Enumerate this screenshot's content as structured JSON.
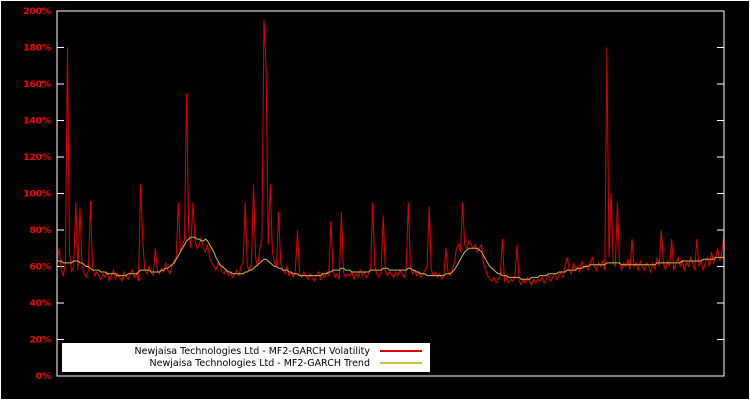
{
  "figure": {
    "background": "#000000",
    "border_color": "#ffffff",
    "tick_label_color": "#ff0000"
  },
  "legend": {
    "items": [
      {
        "label": "Newjaisa Technologies Ltd - MF2-GARCH Volatility",
        "color": "#e00000"
      },
      {
        "label": "Newjaisa Technologies Ltd - MF2-GARCH Trend",
        "color": "#ccbb44"
      }
    ]
  },
  "chart_data": {
    "type": "line",
    "title": "",
    "xlabel": "",
    "ylabel": "",
    "grid": false,
    "legend_position": "bottom-left",
    "ylim": [
      0,
      200
    ],
    "ytick_step": 20,
    "yticks": [
      {
        "v": 0,
        "label": "0%"
      },
      {
        "v": 20,
        "label": "20%"
      },
      {
        "v": 40,
        "label": "40%"
      },
      {
        "v": 60,
        "label": "60%"
      },
      {
        "v": 80,
        "label": "80%"
      },
      {
        "v": 100,
        "label": "100%"
      },
      {
        "v": 120,
        "label": "120%"
      },
      {
        "v": 140,
        "label": "140%"
      },
      {
        "v": 160,
        "label": "160%"
      },
      {
        "v": 180,
        "label": "180%"
      },
      {
        "v": 200,
        "label": "200%"
      }
    ],
    "series": [
      {
        "name": "Newjaisa Technologies Ltd - MF2-GARCH Volatility",
        "color": "#e00000",
        "values": [
          63,
          70,
          58,
          55,
          62,
          180,
          68,
          57,
          60,
          95,
          58,
          92,
          60,
          56,
          54,
          58,
          96,
          60,
          55,
          57,
          55,
          53,
          56,
          54,
          57,
          52,
          55,
          58,
          53,
          56,
          54,
          52,
          57,
          55,
          53,
          56,
          58,
          54,
          56,
          52,
          105,
          75,
          58,
          56,
          60,
          57,
          55,
          70,
          58,
          56,
          59,
          57,
          62,
          58,
          56,
          60,
          63,
          65,
          95,
          68,
          72,
          75,
          155,
          80,
          70,
          95,
          74,
          70,
          72,
          76,
          70,
          68,
          72,
          65,
          62,
          60,
          58,
          62,
          60,
          57,
          56,
          58,
          55,
          57,
          54,
          56,
          58,
          55,
          60,
          62,
          95,
          60,
          58,
          62,
          105,
          65,
          60,
          70,
          75,
          195,
          168,
          72,
          105,
          68,
          62,
          60,
          90,
          62,
          58,
          56,
          60,
          55,
          57,
          54,
          58,
          80,
          56,
          54,
          57,
          55,
          53,
          56,
          54,
          52,
          55,
          57,
          53,
          56,
          54,
          57,
          55,
          85,
          58,
          54,
          56,
          53,
          90,
          57,
          54,
          56,
          55,
          57,
          53,
          56,
          54,
          58,
          55,
          57,
          54,
          56,
          58,
          95,
          60,
          56,
          54,
          57,
          88,
          58,
          55,
          57,
          56,
          54,
          57,
          55,
          58,
          56,
          54,
          58,
          95,
          60,
          56,
          58,
          55,
          57,
          54,
          56,
          58,
          60,
          93,
          58,
          55,
          57,
          54,
          56,
          53,
          55,
          70,
          57,
          55,
          58,
          62,
          70,
          72,
          68,
          95,
          72,
          70,
          74,
          72,
          70,
          72,
          68,
          70,
          72,
          62,
          58,
          55,
          53,
          52,
          54,
          51,
          53,
          55,
          75,
          52,
          54,
          51,
          53,
          52,
          54,
          72,
          52,
          50,
          53,
          51,
          54,
          52,
          50,
          53,
          51,
          53,
          52,
          54,
          51,
          53,
          55,
          52,
          54,
          56,
          53,
          55,
          57,
          54,
          60,
          65,
          58,
          56,
          62,
          58,
          60,
          57,
          63,
          59,
          61,
          58,
          62,
          65,
          60,
          58,
          62,
          60,
          63,
          58,
          180,
          65,
          100,
          62,
          60,
          95,
          62,
          58,
          62,
          60,
          64,
          58,
          75,
          60,
          62,
          58,
          63,
          60,
          58,
          62,
          60,
          57,
          62,
          58,
          65,
          60,
          80,
          62,
          58,
          63,
          60,
          75,
          58,
          62,
          65,
          60,
          63,
          58,
          62,
          60,
          65,
          62,
          58,
          75,
          60,
          63,
          58,
          62,
          65,
          60,
          68,
          62,
          65,
          70,
          63,
          68,
          78
        ]
      },
      {
        "name": "Newjaisa Technologies Ltd - MF2-GARCH Trend",
        "color": "#ccbb44",
        "values": [
          63,
          63,
          63,
          62,
          62,
          62,
          62,
          62,
          63,
          63,
          63,
          62,
          62,
          61,
          60,
          60,
          59,
          58,
          58,
          58,
          58,
          57,
          57,
          57,
          56,
          56,
          56,
          56,
          56,
          55,
          55,
          55,
          55,
          55,
          56,
          56,
          56,
          56,
          56,
          57,
          58,
          58,
          58,
          58,
          58,
          57,
          57,
          57,
          57,
          57,
          58,
          58,
          59,
          59,
          60,
          61,
          62,
          64,
          66,
          68,
          70,
          72,
          74,
          75,
          76,
          76,
          76,
          75,
          75,
          74,
          74,
          75,
          74,
          72,
          70,
          68,
          65,
          63,
          61,
          60,
          59,
          58,
          57,
          57,
          56,
          56,
          56,
          56,
          56,
          56,
          57,
          57,
          58,
          58,
          59,
          60,
          61,
          62,
          63,
          64,
          64,
          63,
          62,
          61,
          60,
          60,
          59,
          59,
          58,
          58,
          58,
          57,
          57,
          56,
          56,
          56,
          55,
          55,
          55,
          55,
          55,
          55,
          55,
          55,
          55,
          55,
          55,
          56,
          56,
          56,
          57,
          57,
          58,
          58,
          58,
          58,
          59,
          59,
          58,
          58,
          58,
          57,
          57,
          57,
          57,
          57,
          57,
          57,
          57,
          57,
          58,
          58,
          58,
          58,
          58,
          58,
          59,
          59,
          59,
          58,
          58,
          58,
          58,
          58,
          58,
          58,
          58,
          58,
          59,
          59,
          58,
          58,
          57,
          57,
          56,
          56,
          56,
          55,
          55,
          55,
          55,
          55,
          55,
          55,
          55,
          55,
          56,
          56,
          56,
          57,
          58,
          60,
          62,
          64,
          66,
          68,
          69,
          70,
          70,
          70,
          70,
          70,
          69,
          68,
          66,
          64,
          62,
          60,
          59,
          58,
          57,
          56,
          56,
          55,
          55,
          55,
          54,
          54,
          54,
          54,
          54,
          54,
          53,
          53,
          53,
          53,
          53,
          54,
          54,
          54,
          54,
          55,
          55,
          55,
          55,
          56,
          56,
          56,
          56,
          56,
          57,
          57,
          57,
          57,
          58,
          58,
          58,
          58,
          58,
          59,
          59,
          59,
          60,
          60,
          60,
          61,
          61,
          61,
          61,
          61,
          61,
          61,
          61,
          62,
          62,
          62,
          62,
          62,
          62,
          62,
          61,
          61,
          61,
          61,
          61,
          61,
          61,
          61,
          61,
          61,
          61,
          61,
          61,
          61,
          61,
          61,
          61,
          62,
          62,
          62,
          62,
          62,
          62,
          62,
          62,
          62,
          62,
          62,
          62,
          63,
          63,
          63,
          63,
          63,
          63,
          63,
          63,
          63,
          63,
          64,
          64,
          64,
          64,
          64,
          64,
          65,
          65,
          65,
          65,
          65
        ]
      }
    ]
  }
}
